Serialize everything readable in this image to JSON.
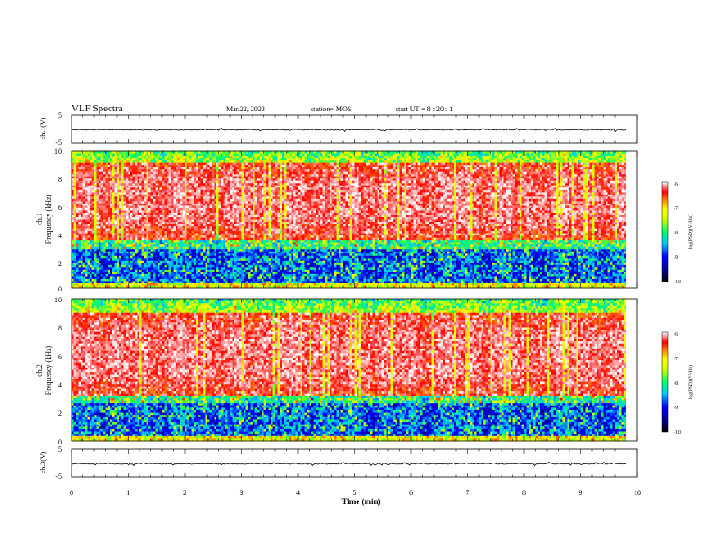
{
  "header": {
    "title": "VLF Spectra",
    "date": "Mar.22, 2023",
    "station": "station= MOS",
    "start": "start UT =  8 : 20 : 1"
  },
  "chart_data": [
    {
      "type": "line",
      "ylabel": "ch.1(V)",
      "ylim": [
        -5,
        5
      ],
      "yticks": [
        "5",
        "-5"
      ],
      "xlim": [
        0,
        10
      ],
      "series_level": -0.3
    },
    {
      "type": "heatmap",
      "ylabel_top": "ch.1",
      "ylabel": "Frequency (kHz)",
      "ylim": [
        0,
        10
      ],
      "yticks": [
        "0",
        "2",
        "4",
        "6",
        "8",
        "10"
      ],
      "xlim": [
        0,
        10
      ],
      "x_data_max": 9.8,
      "intense_band_khz": [
        3.5,
        9.2
      ],
      "colorbar": {
        "label": "log(PSD)(V²/Hz)",
        "range": [
          -10,
          -6
        ],
        "ticks": [
          "-6",
          "-7",
          "-8",
          "-9",
          "-10"
        ]
      }
    },
    {
      "type": "heatmap",
      "ylabel_top": "ch.2",
      "ylabel": "Frequency (kHz)",
      "ylim": [
        0,
        10
      ],
      "yticks": [
        "0",
        "2",
        "4",
        "6",
        "8",
        "10"
      ],
      "xlim": [
        0,
        10
      ],
      "x_data_max": 9.8,
      "intense_band_khz": [
        3.2,
        9.0
      ],
      "colorbar": {
        "label": "log(PSD)(V²/Hz)",
        "range": [
          -10,
          -6
        ],
        "ticks": [
          "-6",
          "-7",
          "-8",
          "-9",
          "-10"
        ]
      }
    },
    {
      "type": "line",
      "ylabel": "ch.3(V)",
      "ylim": [
        -5,
        5
      ],
      "yticks": [
        "5",
        "-5"
      ],
      "xlim": [
        0,
        10
      ],
      "series_level": -0.3
    }
  ],
  "xaxis": {
    "label": "Time (min)",
    "ticks": [
      "0",
      "1",
      "2",
      "3",
      "4",
      "5",
      "6",
      "7",
      "8",
      "9",
      "10"
    ]
  },
  "colors": {
    "axis": "#000000",
    "background": "#ffffff"
  }
}
